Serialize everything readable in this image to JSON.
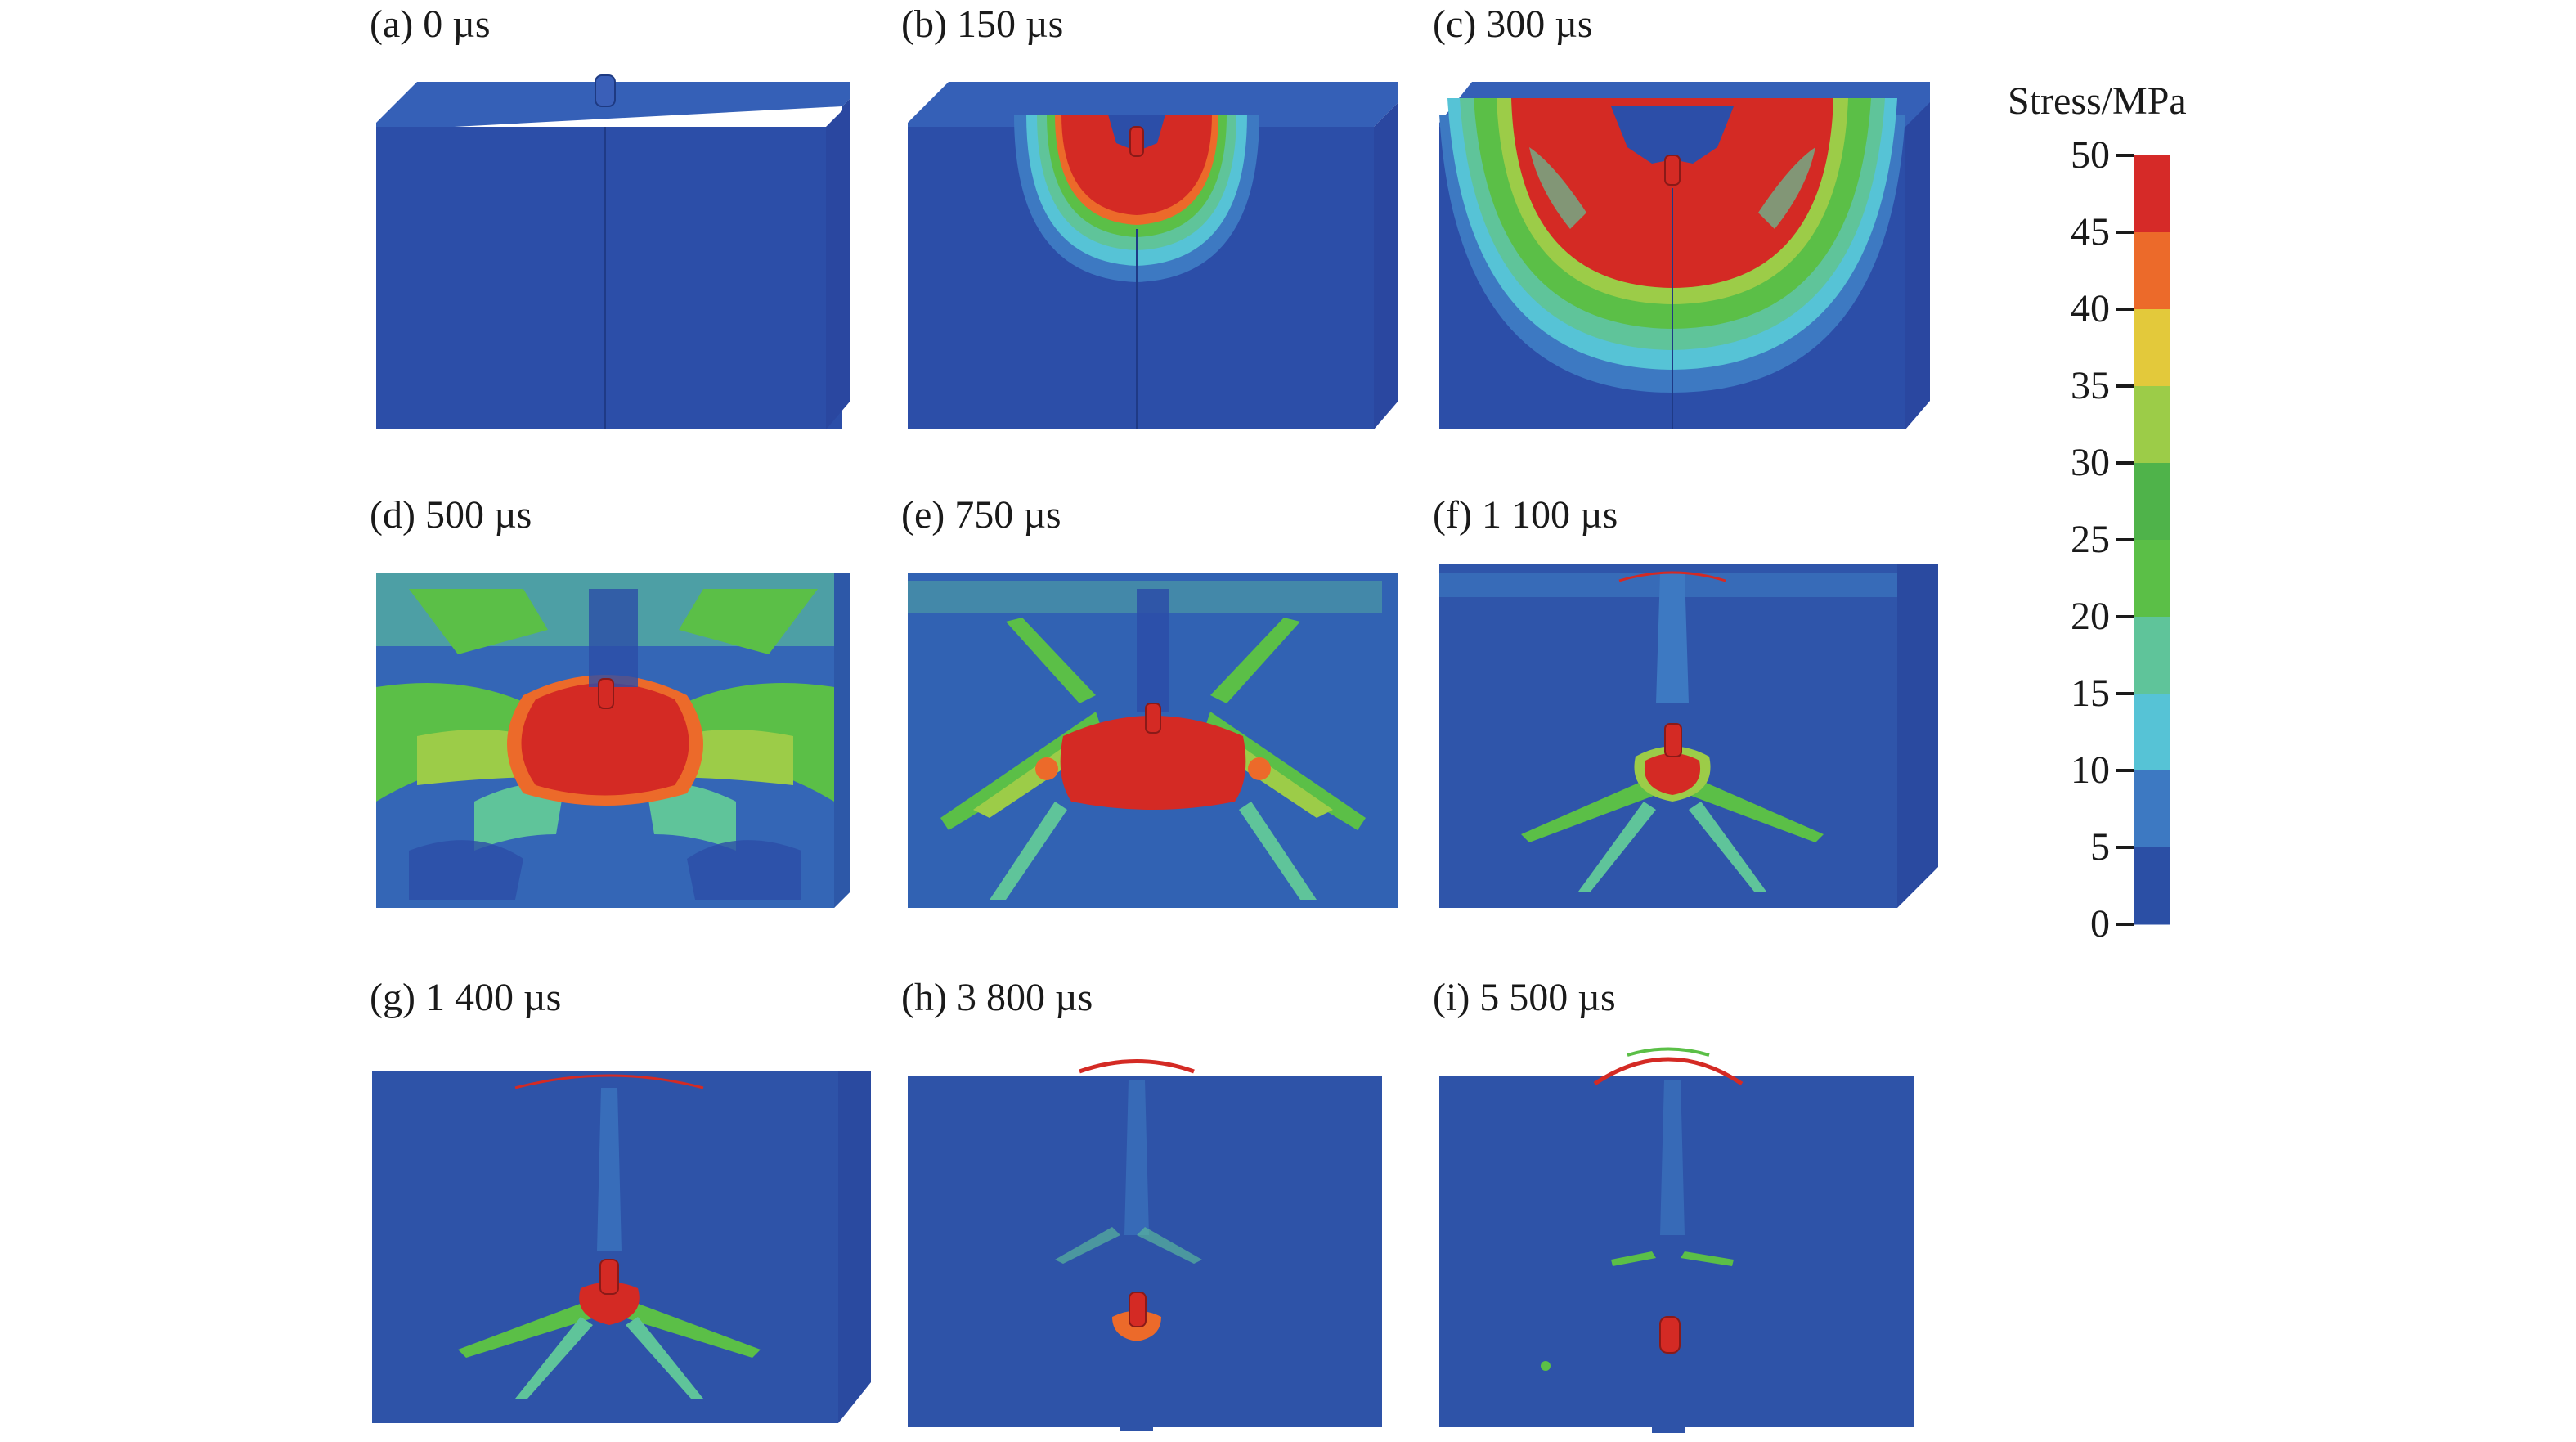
{
  "panels": [
    {
      "label": "(a) 0 µs",
      "time_us": 0
    },
    {
      "label": "(b) 150 µs",
      "time_us": 150
    },
    {
      "label": "(c) 300 µs",
      "time_us": 300
    },
    {
      "label": "(d) 500 µs",
      "time_us": 500
    },
    {
      "label": "(e) 750 µs",
      "time_us": 750
    },
    {
      "label": "(f) 1 100 µs",
      "time_us": 1100
    },
    {
      "label": "(g) 1 400 µs",
      "time_us": 1400
    },
    {
      "label": "(h) 3 800 µs",
      "time_us": 3800
    },
    {
      "label": "(i) 5 500 µs",
      "time_us": 5500
    }
  ],
  "colorbar": {
    "title": "Stress/MPa",
    "min": 0,
    "max": 50,
    "ticks": [
      "50",
      "45",
      "40",
      "35",
      "30",
      "25",
      "20",
      "15",
      "10",
      "5",
      "0"
    ],
    "bands_top_to_bottom": [
      "#d62a28",
      "#ec6a2a",
      "#e3c93b",
      "#9ccc48",
      "#4fb34a",
      "#5bbf47",
      "#5fc49a",
      "#56c3d6",
      "#3d79c2",
      "#2b4fa5"
    ]
  },
  "colors": {
    "base_blue": "#2c4ea8",
    "top_blue": "#3560b7",
    "side_blue": "#2a4aa0",
    "red": "#d42a24",
    "orange": "#ec6a2a",
    "yellow": "#e3c93b",
    "green": "#5bbf47",
    "teal": "#5fc49a",
    "cyan": "#56c3d6"
  }
}
